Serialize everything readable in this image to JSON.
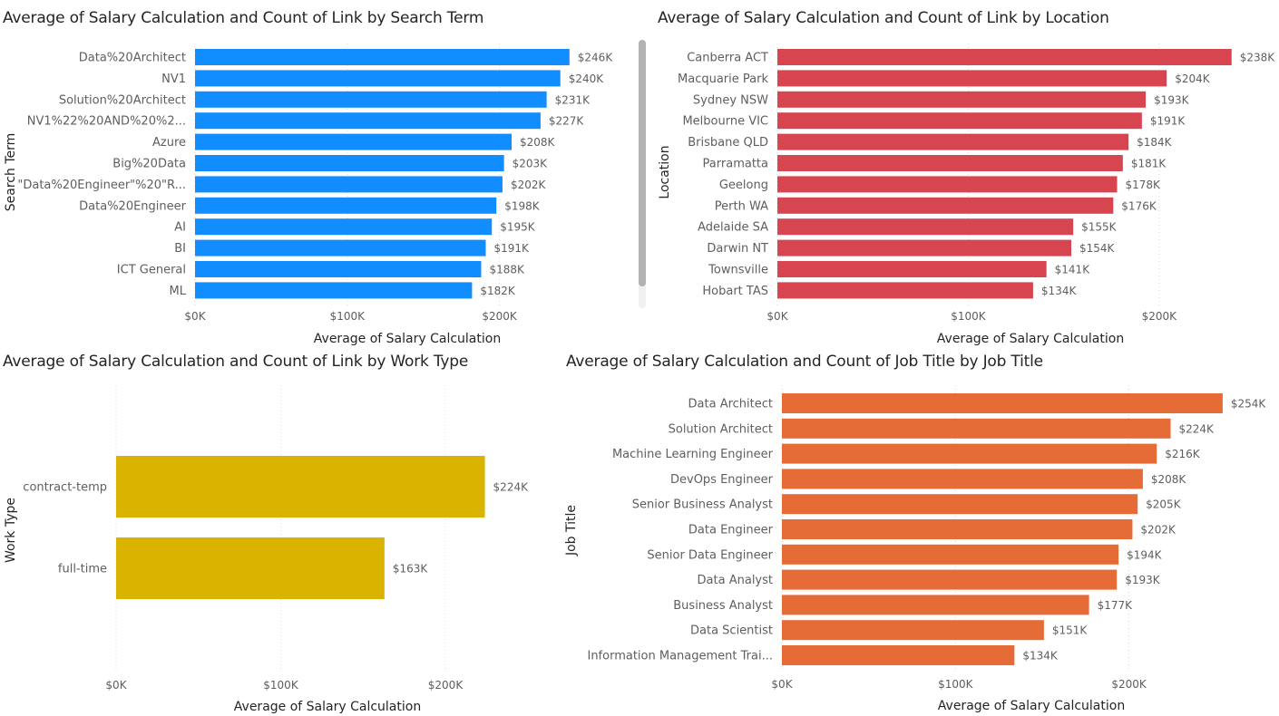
{
  "colors": {
    "search_term": "#118DFF",
    "location": "#D64550",
    "work_type": "#D9B300",
    "job_title": "#E66C37"
  },
  "chart_data": [
    {
      "type": "bar",
      "orientation": "horizontal",
      "title": "Average of Salary Calculation and Count of Link by Search Term",
      "xlabel": "Average of Salary Calculation",
      "ylabel": "Search Term",
      "categories": [
        "Data%20Architect",
        "NV1",
        "Solution%20Architect",
        "NV1%22%20AND%20%2...",
        "Azure",
        "Big%20Data",
        "\"Data%20Engineer\"%20\"R...",
        "Data%20Engineer",
        "AI",
        "BI",
        "ICT General",
        "ML"
      ],
      "values": [
        246,
        240,
        231,
        227,
        208,
        203,
        202,
        198,
        195,
        191,
        188,
        182
      ],
      "value_labels": [
        "$246K",
        "$240K",
        "$231K",
        "$227K",
        "$208K",
        "$203K",
        "$202K",
        "$198K",
        "$195K",
        "$191K",
        "$188K",
        "$182K"
      ],
      "x_ticks": [
        0,
        100,
        200
      ],
      "x_tick_labels": [
        "$0K",
        "$100K",
        "$200K"
      ],
      "xlim": [
        0,
        250
      ],
      "grid": true,
      "legend": "none"
    },
    {
      "type": "bar",
      "orientation": "horizontal",
      "title": "Average of Salary Calculation and Count of Link by Location",
      "xlabel": "Average of Salary Calculation",
      "ylabel": "Location",
      "categories": [
        "Canberra ACT",
        "Macquarie Park",
        "Sydney NSW",
        "Melbourne VIC",
        "Brisbane QLD",
        "Parramatta",
        "Geelong",
        "Perth WA",
        "Adelaide SA",
        "Darwin NT",
        "Townsville",
        "Hobart TAS"
      ],
      "values": [
        238,
        204,
        193,
        191,
        184,
        181,
        178,
        176,
        155,
        154,
        141,
        134
      ],
      "value_labels": [
        "$238K",
        "$204K",
        "$193K",
        "$191K",
        "$184K",
        "$181K",
        "$178K",
        "$176K",
        "$155K",
        "$154K",
        "$141K",
        "$134K"
      ],
      "x_ticks": [
        0,
        100,
        200
      ],
      "x_tick_labels": [
        "$0K",
        "$100K",
        "$200K"
      ],
      "xlim": [
        0,
        240
      ],
      "grid": true,
      "legend": "none"
    },
    {
      "type": "bar",
      "orientation": "horizontal",
      "title": "Average of Salary Calculation and Count of Link by Work Type",
      "xlabel": "Average of Salary Calculation",
      "ylabel": "Work Type",
      "categories": [
        "contract-temp",
        "full-time"
      ],
      "values": [
        224,
        163
      ],
      "value_labels": [
        "$224K",
        "$163K"
      ],
      "x_ticks": [
        0,
        100,
        200
      ],
      "x_tick_labels": [
        "$0K",
        "$100K",
        "$200K"
      ],
      "xlim": [
        0,
        240
      ],
      "grid": true,
      "legend": "none"
    },
    {
      "type": "bar",
      "orientation": "horizontal",
      "title": "Average of Salary Calculation and Count of Job Title by Job Title",
      "xlabel": "Average of Salary Calculation",
      "ylabel": "Job Title",
      "categories": [
        "Data Architect",
        "Solution Architect",
        "Machine Learning Engineer",
        "DevOps Engineer",
        "Senior Business Analyst",
        "Data Engineer",
        "Senior Data Engineer",
        "Data Analyst",
        "Business Analyst",
        "Data Scientist",
        "Information Management Trai..."
      ],
      "values": [
        254,
        224,
        216,
        208,
        205,
        202,
        194,
        193,
        177,
        151,
        134
      ],
      "value_labels": [
        "$254K",
        "$224K",
        "$216K",
        "$208K",
        "$205K",
        "$202K",
        "$194K",
        "$193K",
        "$177K",
        "$151K",
        "$134K"
      ],
      "x_ticks": [
        0,
        100,
        200
      ],
      "x_tick_labels": [
        "$0K",
        "$100K",
        "$200K"
      ],
      "xlim": [
        0,
        255
      ],
      "grid": true,
      "legend": "none"
    }
  ]
}
